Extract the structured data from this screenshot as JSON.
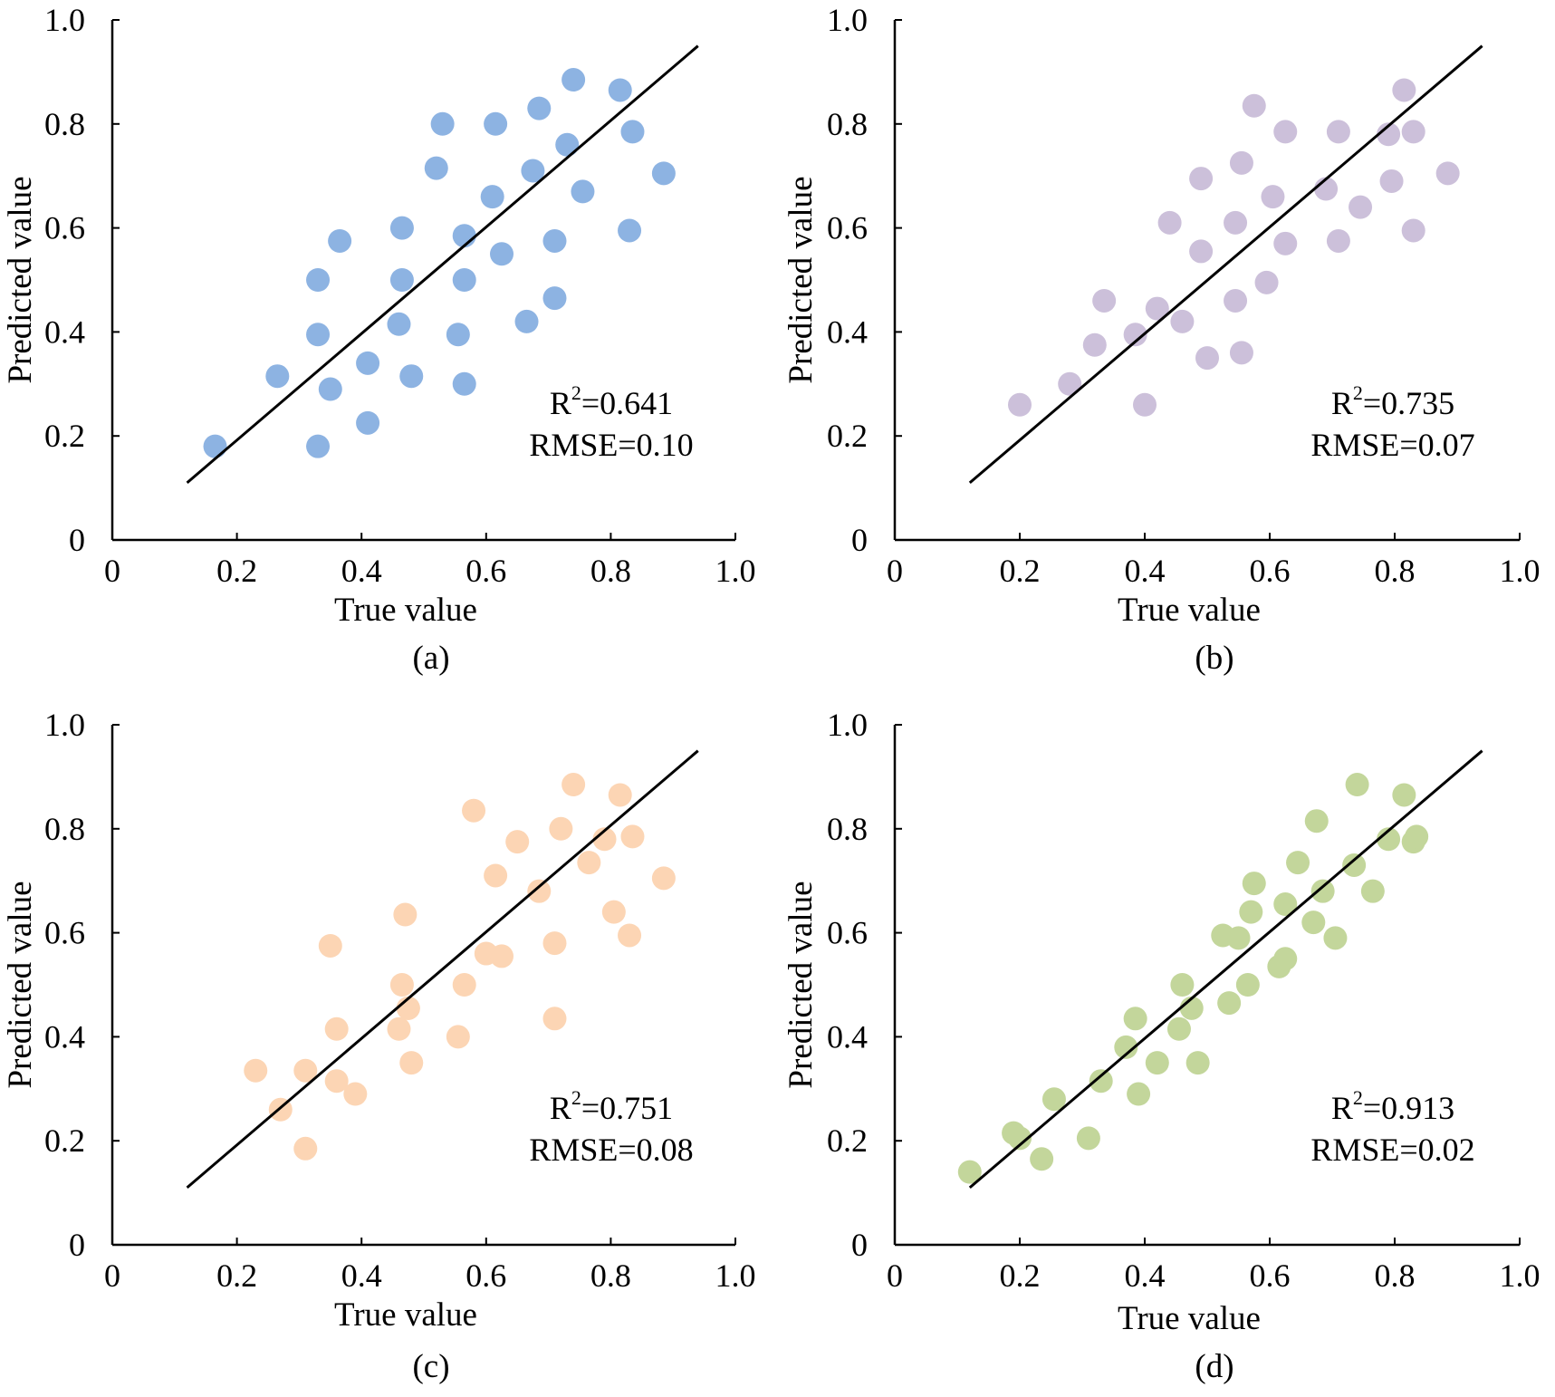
{
  "chart_data": [
    {
      "type": "scatter",
      "caption": "(a)",
      "xlabel": "True value",
      "ylabel": "Predicted value",
      "xlim": [
        0,
        1.0
      ],
      "ylim": [
        0,
        1.0
      ],
      "xticks": [
        "0",
        "0.2",
        "0.4",
        "0.6",
        "0.8",
        "1.0"
      ],
      "yticks": [
        "0",
        "0.2",
        "0.4",
        "0.6",
        "0.8",
        "1.0"
      ],
      "color": "#8db3e2",
      "stats": {
        "r2_label": "R",
        "r2_sup": "2",
        "r2_value": "=0.641",
        "rmse": "RMSE=0.10"
      },
      "fit_line": {
        "x": [
          0.12,
          0.94
        ],
        "y": [
          0.11,
          0.95
        ]
      },
      "x": [
        0.165,
        0.265,
        0.33,
        0.33,
        0.33,
        0.35,
        0.365,
        0.41,
        0.41,
        0.46,
        0.465,
        0.465,
        0.48,
        0.52,
        0.53,
        0.555,
        0.565,
        0.565,
        0.565,
        0.61,
        0.615,
        0.625,
        0.665,
        0.675,
        0.685,
        0.71,
        0.71,
        0.73,
        0.74,
        0.755,
        0.815,
        0.83,
        0.835,
        0.885
      ],
      "y": [
        0.18,
        0.315,
        0.18,
        0.395,
        0.5,
        0.29,
        0.575,
        0.225,
        0.34,
        0.415,
        0.5,
        0.6,
        0.315,
        0.715,
        0.8,
        0.395,
        0.3,
        0.5,
        0.585,
        0.66,
        0.8,
        0.55,
        0.42,
        0.71,
        0.83,
        0.465,
        0.575,
        0.76,
        0.885,
        0.67,
        0.865,
        0.595,
        0.785,
        0.705
      ]
    },
    {
      "type": "scatter",
      "caption": "(b)",
      "xlabel": "True value",
      "ylabel": "Predicted value",
      "xlim": [
        0,
        1.0
      ],
      "ylim": [
        0,
        1.0
      ],
      "xticks": [
        "0",
        "0.2",
        "0.4",
        "0.6",
        "0.8",
        "1.0"
      ],
      "yticks": [
        "0",
        "0.2",
        "0.4",
        "0.6",
        "0.8",
        "1.0"
      ],
      "color": "#ccc0da",
      "stats": {
        "r2_label": "R",
        "r2_sup": "2",
        "r2_value": "=0.735",
        "rmse": "RMSE=0.07"
      },
      "fit_line": {
        "x": [
          0.12,
          0.94
        ],
        "y": [
          0.11,
          0.95
        ]
      },
      "x": [
        0.2,
        0.28,
        0.32,
        0.335,
        0.385,
        0.4,
        0.42,
        0.44,
        0.46,
        0.49,
        0.49,
        0.5,
        0.545,
        0.545,
        0.555,
        0.555,
        0.575,
        0.595,
        0.605,
        0.625,
        0.625,
        0.69,
        0.71,
        0.71,
        0.745,
        0.79,
        0.795,
        0.815,
        0.83,
        0.83,
        0.885
      ],
      "y": [
        0.26,
        0.3,
        0.375,
        0.46,
        0.395,
        0.26,
        0.445,
        0.61,
        0.42,
        0.555,
        0.695,
        0.35,
        0.46,
        0.61,
        0.36,
        0.725,
        0.835,
        0.495,
        0.66,
        0.57,
        0.785,
        0.675,
        0.575,
        0.785,
        0.64,
        0.78,
        0.69,
        0.865,
        0.595,
        0.785,
        0.705
      ]
    },
    {
      "type": "scatter",
      "caption": "(c)",
      "xlabel": "True value",
      "ylabel": "Predicted value",
      "xlim": [
        0,
        1.0
      ],
      "ylim": [
        0,
        1.0
      ],
      "xticks": [
        "0",
        "0.2",
        "0.4",
        "0.6",
        "0.8",
        "1.0"
      ],
      "yticks": [
        "0",
        "0.2",
        "0.4",
        "0.6",
        "0.8",
        "1.0"
      ],
      "color": "#fcd5b4",
      "stats": {
        "r2_label": "R",
        "r2_sup": "2",
        "r2_value": "=0.751",
        "rmse": "RMSE=0.08"
      },
      "fit_line": {
        "x": [
          0.12,
          0.94
        ],
        "y": [
          0.11,
          0.95
        ]
      },
      "x": [
        0.23,
        0.27,
        0.31,
        0.31,
        0.35,
        0.36,
        0.36,
        0.39,
        0.46,
        0.465,
        0.47,
        0.475,
        0.475,
        0.48,
        0.555,
        0.565,
        0.58,
        0.6,
        0.615,
        0.625,
        0.65,
        0.685,
        0.71,
        0.71,
        0.72,
        0.74,
        0.765,
        0.79,
        0.805,
        0.815,
        0.83,
        0.835,
        0.885
      ],
      "y": [
        0.335,
        0.26,
        0.335,
        0.185,
        0.575,
        0.315,
        0.415,
        0.29,
        0.415,
        0.5,
        0.635,
        0.455,
        0.455,
        0.35,
        0.4,
        0.5,
        0.835,
        0.56,
        0.71,
        0.555,
        0.775,
        0.68,
        0.435,
        0.58,
        0.8,
        0.885,
        0.735,
        0.78,
        0.64,
        0.865,
        0.595,
        0.785,
        0.705
      ]
    },
    {
      "type": "scatter",
      "caption": "(d)",
      "xlabel": "True value",
      "ylabel": "Predicted value",
      "xlim": [
        0,
        1.0
      ],
      "ylim": [
        0,
        1.0
      ],
      "xticks": [
        "0",
        "0.2",
        "0.4",
        "0.6",
        "0.8",
        "1.0"
      ],
      "yticks": [
        "0",
        "0.2",
        "0.4",
        "0.6",
        "0.8",
        "1.0"
      ],
      "color": "#c3d69b",
      "stats": {
        "r2_label": "R",
        "r2_sup": "2",
        "r2_value": "=0.913",
        "rmse": "RMSE=0.02"
      },
      "fit_line": {
        "x": [
          0.12,
          0.94
        ],
        "y": [
          0.11,
          0.95
        ]
      },
      "x": [
        0.12,
        0.19,
        0.2,
        0.235,
        0.255,
        0.31,
        0.33,
        0.37,
        0.385,
        0.39,
        0.42,
        0.455,
        0.46,
        0.475,
        0.485,
        0.525,
        0.535,
        0.55,
        0.565,
        0.57,
        0.575,
        0.615,
        0.625,
        0.625,
        0.645,
        0.67,
        0.675,
        0.685,
        0.705,
        0.735,
        0.74,
        0.765,
        0.79,
        0.815,
        0.83,
        0.835
      ],
      "y": [
        0.14,
        0.215,
        0.205,
        0.165,
        0.28,
        0.205,
        0.315,
        0.38,
        0.435,
        0.29,
        0.35,
        0.415,
        0.5,
        0.455,
        0.35,
        0.595,
        0.465,
        0.59,
        0.5,
        0.64,
        0.695,
        0.535,
        0.55,
        0.655,
        0.735,
        0.62,
        0.815,
        0.68,
        0.59,
        0.73,
        0.885,
        0.68,
        0.78,
        0.865,
        0.775,
        0.785
      ]
    }
  ]
}
